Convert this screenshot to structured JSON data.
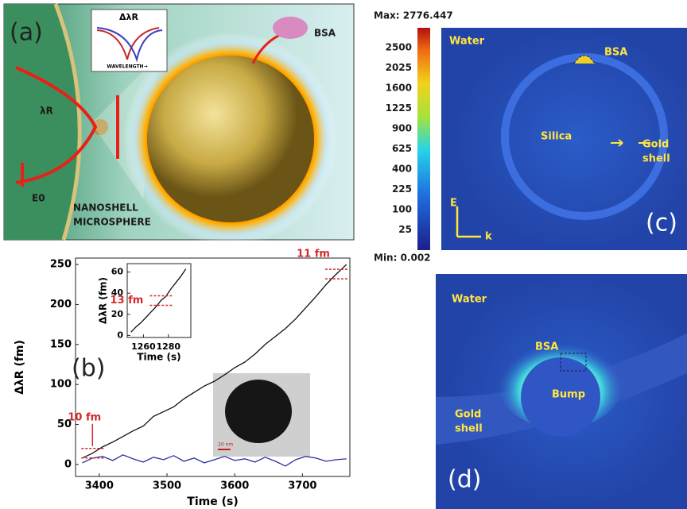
{
  "panel_a": {
    "label": "(a)",
    "inset_title": "ΔλR",
    "inset_axis": "WAVELENGTH→",
    "protein": "BSA",
    "resonance": "λR",
    "field": "E0",
    "particle": "NANOSHELL",
    "sphere": "MICROSPHERE"
  },
  "panel_c": {
    "max": "Max: 2776.447",
    "min": "Min: 0.002",
    "colorbar_ticks": [
      "2500",
      "2025",
      "1600",
      "1225",
      "900",
      "625",
      "400",
      "225",
      "100",
      "25"
    ],
    "water": "Water",
    "protein": "BSA",
    "core": "Silica",
    "shell_line1": "Gold",
    "shell_line2": "shell",
    "axis_e": "E",
    "axis_k": "k",
    "label": "(c)"
  },
  "panel_d": {
    "water": "Water",
    "protein": "BSA",
    "bump": "Bump",
    "shell_line1": "Gold",
    "shell_line2": "shell",
    "label": "(d)"
  },
  "panel_b": {
    "label": "(b)",
    "scale": "20 nm"
  },
  "chart_data": [
    {
      "type": "line",
      "xlabel": "Time (s)",
      "ylabel": "ΔλR (fm)",
      "x": [
        3375,
        3390,
        3405,
        3420,
        3435,
        3450,
        3465,
        3480,
        3495,
        3510,
        3525,
        3540,
        3555,
        3570,
        3585,
        3600,
        3615,
        3630,
        3645,
        3660,
        3675,
        3690,
        3705,
        3720,
        3735,
        3750,
        3765
      ],
      "series": [
        {
          "color": "#111111",
          "values": [
            8,
            14,
            22,
            28,
            35,
            42,
            48,
            60,
            66,
            72,
            82,
            90,
            98,
            104,
            112,
            121,
            128,
            138,
            150,
            160,
            170,
            182,
            196,
            210,
            225,
            238,
            250
          ]
        },
        {
          "color": "#2b2fa0",
          "values": [
            2,
            8,
            10,
            5,
            12,
            7,
            3,
            9,
            6,
            11,
            4,
            8,
            2,
            6,
            10,
            5,
            7,
            3,
            9,
            4,
            -2,
            6,
            10,
            8,
            4,
            6,
            7
          ]
        }
      ],
      "xlim": [
        3365,
        3770
      ],
      "ylim": [
        -15,
        258
      ],
      "xticks": [
        3400,
        3500,
        3600,
        3700
      ],
      "yticks": [
        0,
        50,
        100,
        150,
        200,
        250
      ],
      "annotations": [
        "10 fm",
        "11 fm"
      ]
    },
    {
      "type": "line",
      "xlabel": "Time (s)",
      "ylabel": "ΔλR (fm)",
      "x": [
        1250,
        1254,
        1258,
        1262,
        1266,
        1270,
        1274,
        1278,
        1282,
        1286,
        1290,
        1294
      ],
      "series": [
        {
          "color": "#111111",
          "values": [
            3,
            8,
            12,
            17,
            22,
            27,
            33,
            37,
            44,
            50,
            56,
            63
          ]
        }
      ],
      "xlim": [
        1247,
        1298
      ],
      "ylim": [
        -2,
        68
      ],
      "xticks": [
        1260,
        1280
      ],
      "yticks": [
        0,
        20,
        40,
        60
      ],
      "annotations": [
        "13 fm"
      ]
    }
  ]
}
